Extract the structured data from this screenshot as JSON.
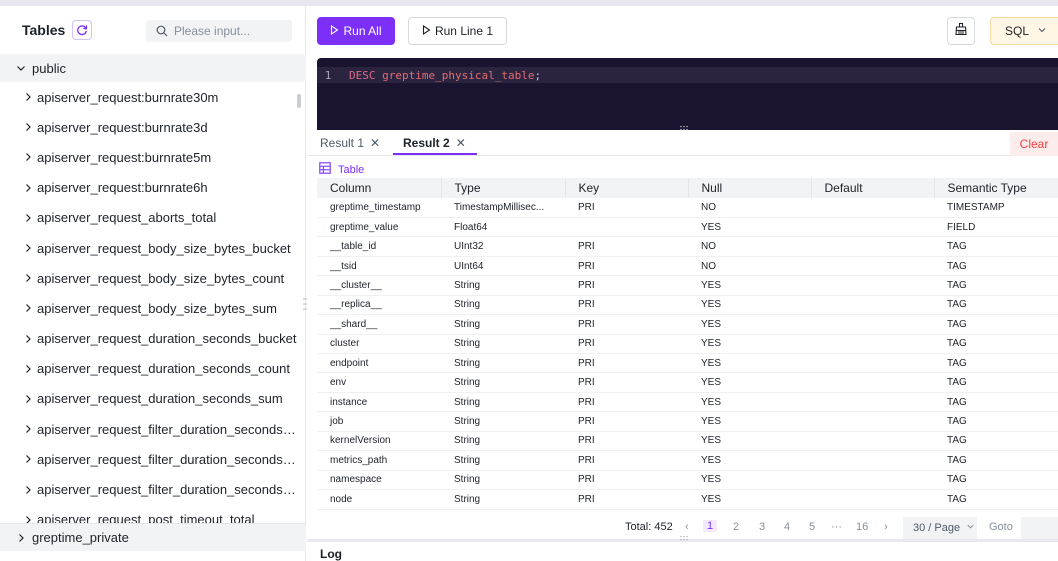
{
  "sidebar": {
    "title": "Tables",
    "search_placeholder": "Please input...",
    "schema_public": "public",
    "schema_private": "greptime_private",
    "tables": [
      "apiserver_request:burnrate30m",
      "apiserver_request:burnrate3d",
      "apiserver_request:burnrate5m",
      "apiserver_request:burnrate6h",
      "apiserver_request_aborts_total",
      "apiserver_request_body_size_bytes_bucket",
      "apiserver_request_body_size_bytes_count",
      "apiserver_request_body_size_bytes_sum",
      "apiserver_request_duration_seconds_bucket",
      "apiserver_request_duration_seconds_count",
      "apiserver_request_duration_seconds_sum",
      "apiserver_request_filter_duration_seconds_bu...",
      "apiserver_request_filter_duration_seconds_co...",
      "apiserver_request_filter_duration_seconds_sum",
      "apiserver_request_post_timeout_total"
    ]
  },
  "toolbar": {
    "run_all": "Run All",
    "run_line": "Run Line 1",
    "language": "SQL"
  },
  "editor": {
    "line_number": "1",
    "keyword": "DESC",
    "identifier": "greptime_physical_table",
    "terminator": ";"
  },
  "results": {
    "tabs": [
      {
        "label": "Result 1"
      },
      {
        "label": "Result 2"
      }
    ],
    "clear_label": "Clear",
    "view_label": "Table",
    "columns": [
      "Column",
      "Type",
      "Key",
      "Null",
      "Default",
      "Semantic Type"
    ],
    "rows": [
      [
        "greptime_timestamp",
        "TimestampMillisec...",
        "PRI",
        "NO",
        "",
        "TIMESTAMP"
      ],
      [
        "greptime_value",
        "Float64",
        "",
        "YES",
        "",
        "FIELD"
      ],
      [
        "__table_id",
        "UInt32",
        "PRI",
        "NO",
        "",
        "TAG"
      ],
      [
        "__tsid",
        "UInt64",
        "PRI",
        "NO",
        "",
        "TAG"
      ],
      [
        "__cluster__",
        "String",
        "PRI",
        "YES",
        "",
        "TAG"
      ],
      [
        "__replica__",
        "String",
        "PRI",
        "YES",
        "",
        "TAG"
      ],
      [
        "__shard__",
        "String",
        "PRI",
        "YES",
        "",
        "TAG"
      ],
      [
        "cluster",
        "String",
        "PRI",
        "YES",
        "",
        "TAG"
      ],
      [
        "endpoint",
        "String",
        "PRI",
        "YES",
        "",
        "TAG"
      ],
      [
        "env",
        "String",
        "PRI",
        "YES",
        "",
        "TAG"
      ],
      [
        "instance",
        "String",
        "PRI",
        "YES",
        "",
        "TAG"
      ],
      [
        "job",
        "String",
        "PRI",
        "YES",
        "",
        "TAG"
      ],
      [
        "kernelVersion",
        "String",
        "PRI",
        "YES",
        "",
        "TAG"
      ],
      [
        "metrics_path",
        "String",
        "PRI",
        "YES",
        "",
        "TAG"
      ],
      [
        "namespace",
        "String",
        "PRI",
        "YES",
        "",
        "TAG"
      ],
      [
        "node",
        "String",
        "PRI",
        "YES",
        "",
        "TAG"
      ]
    ],
    "pagination": {
      "total": "Total: 452",
      "pages": [
        "1",
        "2",
        "3",
        "4",
        "5",
        "···",
        "16"
      ],
      "current": "1",
      "page_size": "30 / Page",
      "goto_label": "Goto"
    }
  },
  "log": {
    "label": "Log"
  },
  "colors": {
    "accent": "#7b2ff7",
    "danger": "#f53f3f",
    "editor_bg": "#1a1430"
  }
}
